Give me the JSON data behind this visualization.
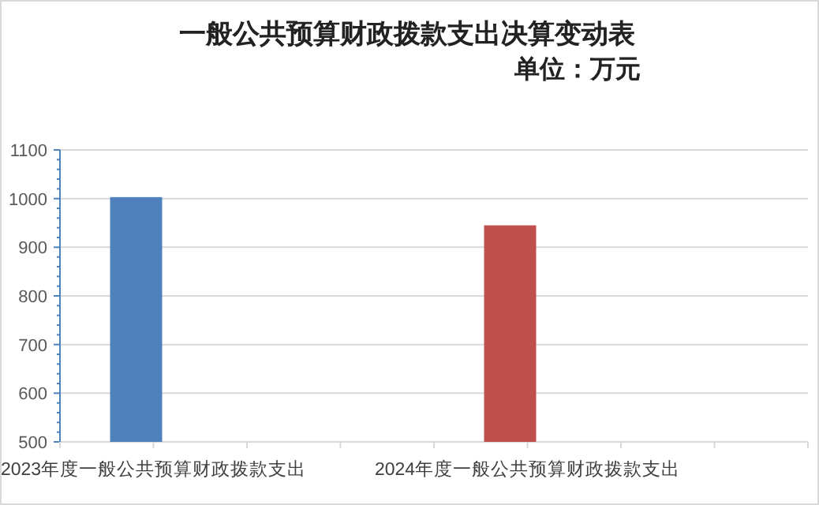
{
  "chart_data": {
    "type": "bar",
    "title": "一般公共预算财政拨款支出决算变动表",
    "subtitle": "单位：万元",
    "categories": [
      "2023年度一般公共预算财政拨款支出",
      null,
      "2024年度一般公共预算财政拨款支出",
      null
    ],
    "values": [
      1003,
      null,
      945,
      null
    ],
    "colors": [
      "#4f81bd",
      null,
      "#c0504d",
      null
    ],
    "ylim": [
      500,
      1100
    ],
    "yticks": [
      500,
      600,
      700,
      800,
      900,
      1000,
      1100
    ],
    "grid": "y"
  }
}
